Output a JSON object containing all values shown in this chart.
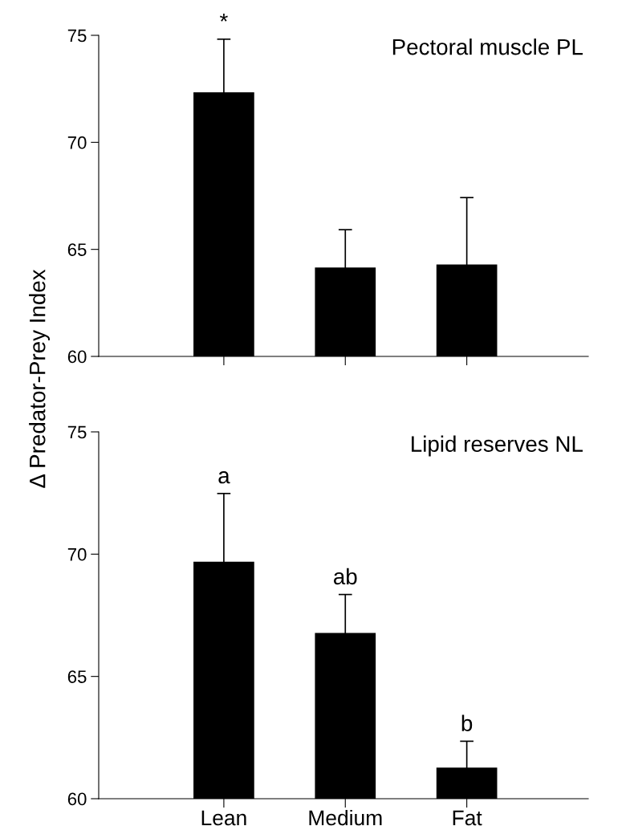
{
  "chart_data": [
    {
      "type": "bar",
      "title": "Pectoral muscle PL",
      "ylabel": "Δ Predator-Prey Index",
      "categories": [
        "Lean",
        "Medium",
        "Fat"
      ],
      "values": [
        72.34,
        64.15,
        64.29
      ],
      "errors": [
        2.48,
        1.77,
        3.13
      ],
      "color": "#000000",
      "ylim": [
        60,
        75
      ],
      "yticks": [
        60,
        65,
        70,
        75
      ],
      "tick_labels": "y",
      "annotations": [
        {
          "text": "*",
          "x": "Lean",
          "y": 74.82
        }
      ]
    },
    {
      "type": "bar",
      "title": "Lipid reserves NL",
      "categories": [
        "Lean",
        "Medium",
        "Fat"
      ],
      "values": [
        69.69,
        66.78,
        61.27
      ],
      "errors": [
        2.79,
        1.57,
        1.08
      ],
      "color": "#000000",
      "ylim": [
        60,
        75
      ],
      "yticks": [
        60,
        65,
        70,
        75
      ],
      "annotations": [
        {
          "text": "a",
          "x": "Lean",
          "y": 72.48
        },
        {
          "text": "ab",
          "x": "Medium",
          "y": 68.35
        },
        {
          "text": "b",
          "x": "Fat",
          "y": 62.35
        }
      ]
    }
  ]
}
